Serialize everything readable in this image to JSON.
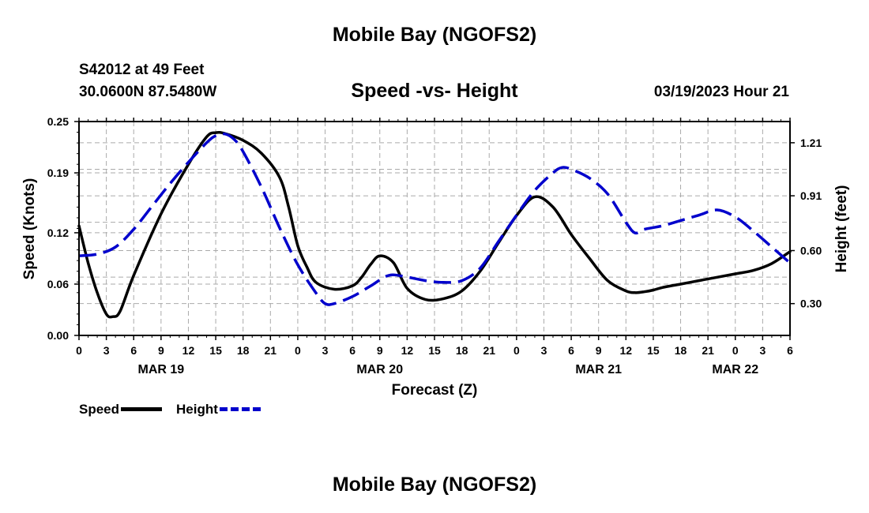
{
  "header": {
    "title": "Mobile Bay (NGOFS2)",
    "station": "S42012 at 49 Feet",
    "coords": "30.0600N  87.5480W",
    "subtitle": "Speed -vs- Height",
    "timestamp": "03/19/2023 Hour 21"
  },
  "footer": {
    "title": "Mobile Bay (NGOFS2)"
  },
  "legend": {
    "speed": "Speed",
    "height": "Height"
  },
  "colors": {
    "speed": "#000000",
    "height": "#0000cc",
    "grid": "#aaaaaa"
  },
  "chart_data": {
    "type": "line",
    "title": "Speed -vs- Height",
    "xlabel": "Forecast (Z)",
    "ylabel": "Speed (Knots)",
    "y2label": "Height (feet)",
    "x_unit": "hours since 03/19 00Z",
    "xlim": [
      0,
      78
    ],
    "ylim": [
      0,
      0.25
    ],
    "y2lim": [
      0.12,
      1.33
    ],
    "x_ticks": [
      0,
      3,
      6,
      9,
      12,
      15,
      18,
      21,
      24,
      27,
      30,
      33,
      36,
      39,
      42,
      45,
      48,
      51,
      54,
      57,
      60,
      63,
      66,
      69,
      72,
      75,
      78
    ],
    "x_tick_labels": [
      "0",
      "3",
      "6",
      "9",
      "12",
      "15",
      "18",
      "21",
      "0",
      "3",
      "6",
      "9",
      "12",
      "15",
      "18",
      "21",
      "0",
      "3",
      "6",
      "9",
      "12",
      "15",
      "18",
      "21",
      "0",
      "3",
      "6"
    ],
    "date_labels": [
      {
        "x": 9,
        "label": "MAR 19"
      },
      {
        "x": 33,
        "label": "MAR 20"
      },
      {
        "x": 57,
        "label": "MAR 21"
      },
      {
        "x": 72,
        "label": "MAR 22"
      }
    ],
    "y_ticks": [
      0.0,
      0.06,
      0.12,
      0.19,
      0.25
    ],
    "y_tick_labels": [
      "0.00",
      "0.06",
      "0.12",
      "0.19",
      "0.25"
    ],
    "y2_ticks": [
      0.3,
      0.6,
      0.91,
      1.21
    ],
    "y2_tick_labels": [
      "0.30",
      "0.60",
      "0.91",
      "1.21"
    ],
    "grid": true,
    "legend_position": "bottom-left",
    "series": [
      {
        "name": "Speed",
        "axis": "left",
        "style": "solid",
        "x": [
          0,
          1,
          2,
          3,
          3.7,
          4.5,
          6,
          9,
          12,
          14,
          15,
          16,
          18,
          20,
          22,
          23,
          24,
          25,
          26,
          28,
          30,
          31,
          32,
          33,
          34.5,
          36,
          38,
          40,
          42,
          44,
          46,
          48,
          50,
          52,
          54,
          56,
          58,
          60,
          61,
          62,
          63,
          64,
          66,
          68,
          70,
          72,
          74,
          76,
          78
        ],
        "y": [
          0.128,
          0.085,
          0.05,
          0.025,
          0.022,
          0.028,
          0.07,
          0.142,
          0.2,
          0.232,
          0.237,
          0.236,
          0.228,
          0.213,
          0.185,
          0.15,
          0.105,
          0.08,
          0.062,
          0.054,
          0.058,
          0.068,
          0.083,
          0.093,
          0.085,
          0.055,
          0.042,
          0.043,
          0.052,
          0.075,
          0.108,
          0.14,
          0.162,
          0.15,
          0.118,
          0.09,
          0.064,
          0.052,
          0.05,
          0.051,
          0.053,
          0.056,
          0.06,
          0.064,
          0.068,
          0.072,
          0.076,
          0.084,
          0.098
        ]
      },
      {
        "name": "Height",
        "axis": "right",
        "style": "dashed",
        "x": [
          0,
          2,
          4,
          6,
          8,
          10,
          12,
          14,
          15,
          16,
          17,
          18,
          20,
          22,
          24,
          26,
          27,
          28,
          30,
          32,
          34,
          36,
          38,
          40,
          42,
          44,
          46,
          48,
          50,
          52,
          53,
          54,
          56,
          58,
          60,
          61,
          62,
          64,
          66,
          68,
          70,
          72,
          74,
          76,
          78
        ],
        "y": [
          0.57,
          0.58,
          0.62,
          0.72,
          0.85,
          0.98,
          1.1,
          1.21,
          1.25,
          1.26,
          1.23,
          1.16,
          0.96,
          0.73,
          0.52,
          0.36,
          0.3,
          0.3,
          0.34,
          0.4,
          0.46,
          0.45,
          0.43,
          0.42,
          0.43,
          0.5,
          0.65,
          0.8,
          0.94,
          1.04,
          1.07,
          1.06,
          1.01,
          0.92,
          0.76,
          0.7,
          0.72,
          0.74,
          0.77,
          0.8,
          0.83,
          0.79,
          0.71,
          0.62,
          0.53
        ]
      }
    ]
  }
}
